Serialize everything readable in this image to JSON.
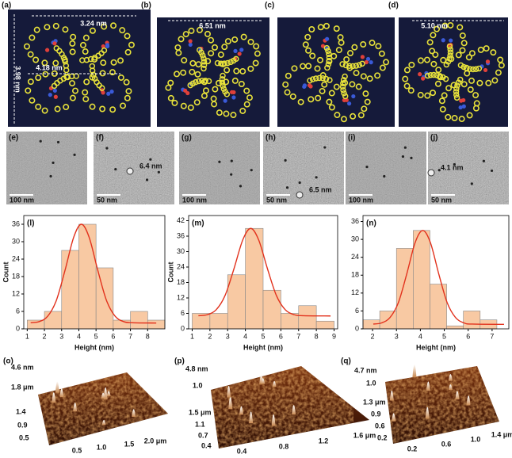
{
  "structures": [
    {
      "label": "(a)",
      "dims": [
        "3.24 nm",
        "4.18 nm",
        "3.98 nm"
      ]
    },
    {
      "label": "(b)",
      "dims": [
        "6.51 nm"
      ]
    },
    {
      "label": "(c)"
    },
    {
      "label": "(d)",
      "dims": [
        "5.10 nm"
      ]
    }
  ],
  "tem": [
    {
      "label": "(e)",
      "scale": "100 nm"
    },
    {
      "label": "(f)",
      "size": "6.4 nm",
      "scale": "50 nm"
    },
    {
      "label": "(g)",
      "scale": "100 nm"
    },
    {
      "label": "(h)",
      "size": "6.5 nm",
      "scale": "50 nm"
    },
    {
      "label": "(i)",
      "scale": "100 nm"
    },
    {
      "label": "(j)",
      "size": "4.1 nm",
      "scale": "50 nm"
    }
  ],
  "histograms": [
    {
      "type": "histogram",
      "label": "(l)",
      "ylabel": "Count",
      "xlabel": "Height  (nm)",
      "bins": [
        1,
        2,
        3,
        4,
        5,
        6,
        7,
        8,
        9
      ],
      "counts": [
        3,
        6,
        27,
        36,
        21,
        3,
        6,
        3
      ],
      "xlim": [
        0.8,
        9
      ],
      "ylim": [
        0,
        39
      ],
      "xticks": [
        1,
        2,
        3,
        4,
        5,
        6,
        7,
        8
      ],
      "yticks": [
        0,
        6,
        12,
        18,
        24,
        30,
        36
      ],
      "bar_color": "#f8c9a3",
      "fit": {
        "color": "#e2321d",
        "x": [
          1.2,
          1.7,
          2.2,
          2.7,
          3.2,
          3.7,
          4.15,
          4.6,
          5.1,
          5.6,
          6.1,
          6.6,
          7.1,
          8.5
        ],
        "y": [
          2.1,
          2.5,
          4.4,
          9.9,
          20.2,
          31.5,
          36,
          31.5,
          20.2,
          9.9,
          4.4,
          2.5,
          2.1,
          2.0
        ]
      }
    },
    {
      "type": "histogram",
      "label": "(m)",
      "ylabel": "Count",
      "xlabel": "Height (nm)",
      "bins": [
        1,
        2,
        3,
        4,
        5,
        6,
        7,
        8,
        9
      ],
      "counts": [
        6,
        6,
        21,
        39,
        15,
        6,
        9,
        3
      ],
      "xlim": [
        0.8,
        9.2
      ],
      "ylim": [
        0,
        44
      ],
      "xticks": [
        1,
        2,
        3,
        4,
        5,
        6,
        7,
        8,
        9
      ],
      "yticks": [
        0,
        6,
        12,
        18,
        24,
        30,
        36,
        42
      ],
      "bar_color": "#f8c9a3",
      "fit": {
        "color": "#e2321d",
        "x": [
          1.35,
          1.85,
          2.35,
          2.85,
          3.35,
          3.85,
          4.3,
          4.75,
          5.25,
          5.75,
          6.25,
          6.75,
          7.25,
          8.8
        ],
        "y": [
          5.1,
          5.5,
          7.4,
          12.9,
          23.2,
          34.5,
          39,
          34.5,
          23.2,
          12.9,
          7.4,
          5.5,
          5.1,
          5.0
        ]
      }
    },
    {
      "type": "histogram",
      "label": "(n)",
      "xlabel": "Height (nm)",
      "bins": [
        1.6,
        2.3,
        3.0,
        3.7,
        4.4,
        5.1,
        5.8,
        6.5,
        7.2
      ],
      "counts": [
        3,
        6,
        27,
        33,
        15,
        1,
        6,
        3
      ],
      "xlim": [
        1.6,
        7.7
      ],
      "ylim": [
        0,
        38
      ],
      "xticks": [
        2,
        3,
        4,
        5,
        6,
        7
      ],
      "yticks": [
        0,
        6,
        12,
        18,
        24,
        30,
        36
      ],
      "bar_color": "#f8c9a3",
      "fit": {
        "color": "#e2321d",
        "x": [
          2.03,
          2.38,
          2.73,
          3.08,
          3.43,
          3.78,
          4.1,
          4.42,
          4.77,
          5.12,
          5.47,
          5.82,
          6.17,
          7.5
        ],
        "y": [
          1.6,
          2.0,
          3.8,
          8.8,
          18.4,
          28.9,
          33,
          28.9,
          18.4,
          8.8,
          3.8,
          2.0,
          1.6,
          1.5
        ]
      }
    }
  ],
  "afm": [
    {
      "label": "(o)",
      "z": "4.6 nm",
      "y_ticks": [
        "1.8 μm",
        "1.4",
        "0.9",
        "0.5"
      ],
      "x_ticks": [
        "0.5",
        "1.0",
        "1.5",
        "2.0 μm"
      ]
    },
    {
      "label": "(p)",
      "z": "4.8 nm",
      "y_ticks": [
        "1.0",
        "1.5 μm",
        "1.1",
        "0.7",
        "0.4"
      ],
      "x_ticks": [
        "0.4",
        "0.8",
        "1.2",
        "1.6 μm"
      ]
    },
    {
      "label": "(q)",
      "z": "4.7 nm",
      "y_ticks": [
        "1.0",
        "1.3 μm",
        "0.9",
        "0.6",
        "0.2"
      ],
      "x_ticks": [
        "0.2",
        "0.6",
        "1.0",
        "1.4 μm"
      ]
    }
  ]
}
